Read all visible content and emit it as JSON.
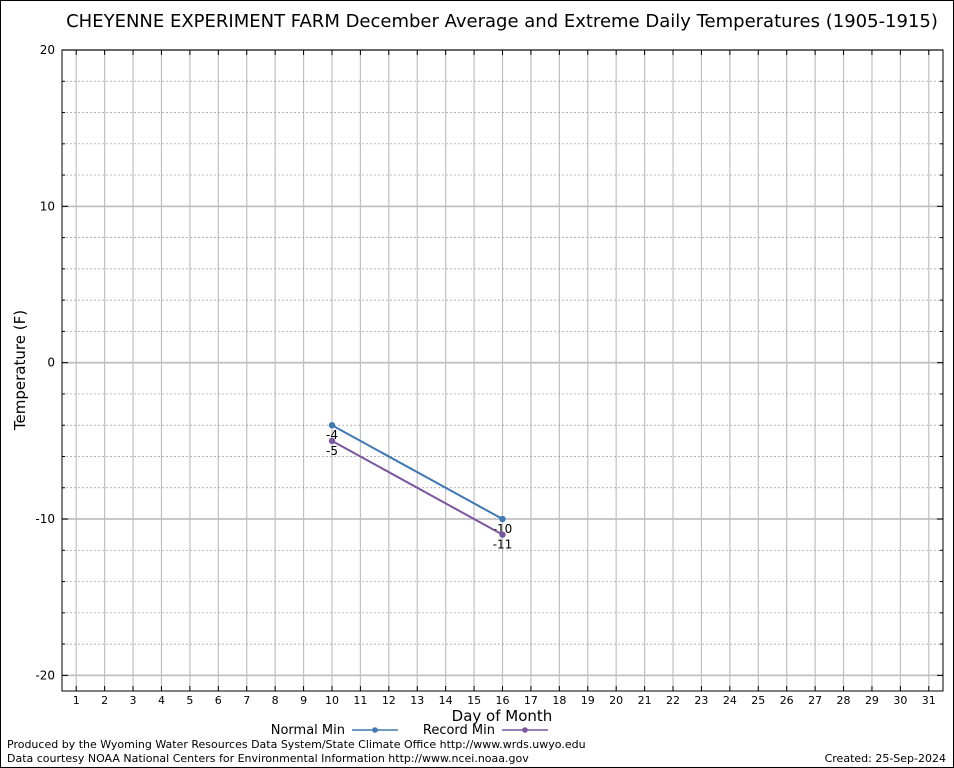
{
  "chart_data": {
    "type": "line",
    "title": "CHEYENNE EXPERIMENT FARM December Average and Extreme Daily Temperatures (1905-1915)",
    "xlabel": "Day of Month",
    "ylabel": "Temperature (F)",
    "xlim": [
      0.5,
      31.5
    ],
    "ylim": [
      -21,
      20
    ],
    "x_ticks": [
      1,
      2,
      3,
      4,
      5,
      6,
      7,
      8,
      9,
      10,
      11,
      12,
      13,
      14,
      15,
      16,
      17,
      18,
      19,
      20,
      21,
      22,
      23,
      24,
      25,
      26,
      27,
      28,
      29,
      30,
      31
    ],
    "y_ticks": [
      -20,
      -10,
      0,
      10,
      20
    ],
    "grid": true,
    "legend_position": "bottom-center",
    "series": [
      {
        "name": "Normal Min",
        "color": "#3f78b4",
        "x": [
          10,
          16
        ],
        "y": [
          -4,
          -10
        ],
        "labels": [
          "-4",
          "-10"
        ]
      },
      {
        "name": "Record Min",
        "color": "#7a56a0",
        "x": [
          10,
          16
        ],
        "y": [
          -5,
          -11
        ],
        "labels": [
          "-5",
          "-11"
        ]
      }
    ]
  },
  "footer": {
    "produced_by": "Produced by the Wyoming Water Resources Data System/State Climate Office http://www.wrds.uwyo.edu",
    "data_courtesy": "Data courtesy NOAA National Centers for Environmental Information http://www.ncei.noaa.gov",
    "created": "Created:  25-Sep-2024"
  }
}
